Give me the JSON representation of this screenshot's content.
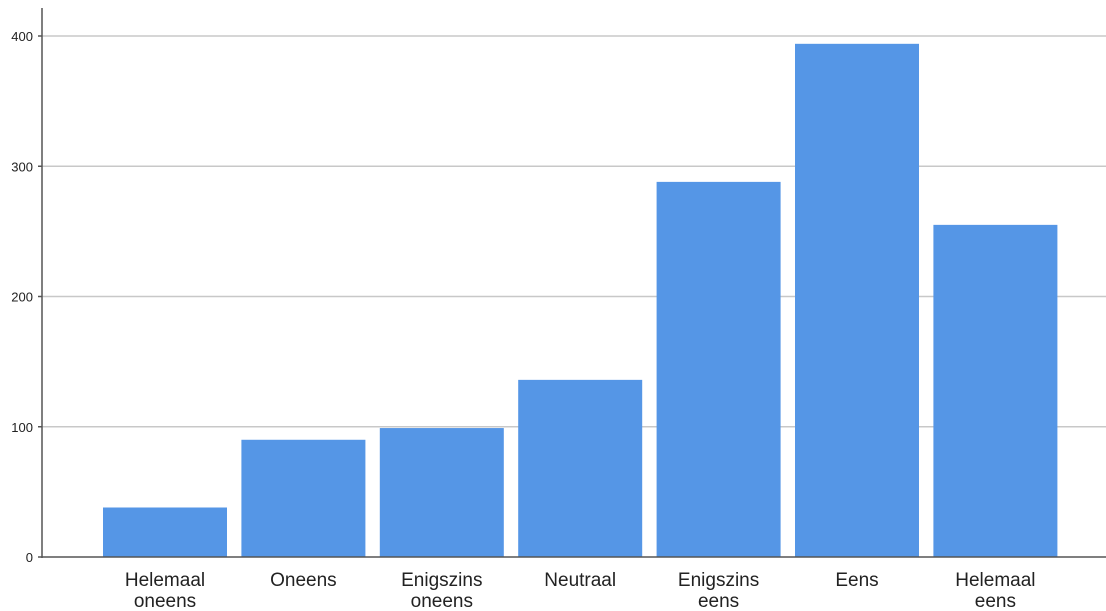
{
  "chart_data": {
    "type": "bar",
    "title": "",
    "xlabel": "",
    "ylabel": "",
    "categories": [
      [
        "Helemaal",
        "oneens"
      ],
      [
        "Oneens"
      ],
      [
        "Enigszins",
        "oneens"
      ],
      [
        "Neutraal"
      ],
      [
        "Enigszins",
        "eens"
      ],
      [
        "Eens"
      ],
      [
        "Helemaal",
        "eens"
      ]
    ],
    "values": [
      38,
      90,
      99,
      136,
      288,
      394,
      255
    ],
    "ylim": [
      0,
      415
    ],
    "yticks": [
      0,
      100,
      200,
      300,
      400
    ],
    "grid": true,
    "legend": "none",
    "bar_color": "#5596e6",
    "grid_color": "#c8c8c8",
    "axis_color": "#555555"
  }
}
